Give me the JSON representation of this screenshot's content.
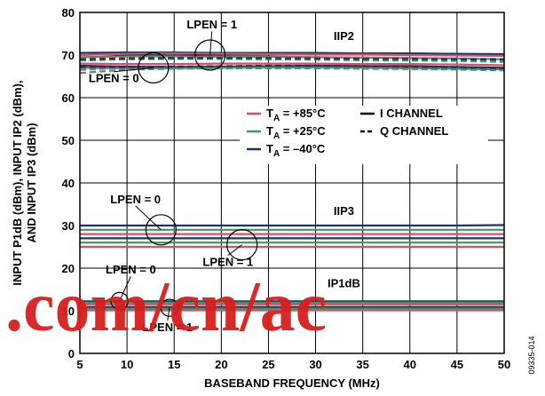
{
  "figure_code": "09335-014",
  "watermark": ".com/cn/ac",
  "colors": {
    "t85": "#d2526a",
    "t25": "#3a9a5a",
    "tm40": "#17356b",
    "watermark": "#d81e1e"
  },
  "chart_data": {
    "type": "line",
    "title": "",
    "xlabel": "BASEBAND FREQUENCY (MHz)",
    "ylabel": [
      "INPUT P1dB (dBm), INPUT IP2 (dBm),",
      "AND INPUT IP3 (dBm)"
    ],
    "xlim": [
      5,
      50
    ],
    "ylim": [
      0,
      80
    ],
    "xticks": [
      5,
      10,
      15,
      20,
      25,
      30,
      35,
      40,
      45,
      50
    ],
    "yticks": [
      0,
      10,
      20,
      30,
      40,
      50,
      60,
      70,
      80
    ],
    "grid": true,
    "legend": {
      "placement": "center-right",
      "temperatures": [
        {
          "key": "t85",
          "label": "T",
          "sub": "A",
          "value": " = +85°C"
        },
        {
          "key": "t25",
          "label": "T",
          "sub": "A",
          "value": " = +25°C"
        },
        {
          "key": "tm40",
          "label": "T",
          "sub": "A",
          "value": " = –40°C"
        }
      ],
      "channels": [
        {
          "style": "solid",
          "label": "I CHANNEL"
        },
        {
          "style": "dashed",
          "label": "Q CHANNEL"
        }
      ]
    },
    "group_labels": [
      {
        "id": "iip2",
        "text": "IIP2",
        "x": 33,
        "y": 73.5
      },
      {
        "id": "iip3",
        "text": "IIP3",
        "x": 33,
        "y": 32.5
      },
      {
        "id": "ip1db",
        "text": "IP1dB",
        "x": 33,
        "y": 15.5
      }
    ],
    "annotations": [
      {
        "id": "iip2-lpen1",
        "text": "LPEN = 1",
        "x": 19,
        "y": 76.2,
        "circle_x": 18.8,
        "circle_y": 70,
        "circle_r": 1.6
      },
      {
        "id": "iip2-lpen0",
        "text": "LPEN = 0",
        "x": 8.6,
        "y": 63.6,
        "circle_x": 12.8,
        "circle_y": 67,
        "circle_r": 1.6
      },
      {
        "id": "iip3-lpen0",
        "text": "LPEN = 0",
        "x": 10.9,
        "y": 35.2,
        "circle_x": 13.6,
        "circle_y": 29,
        "circle_r": 1.6
      },
      {
        "id": "iip3-lpen1",
        "text": "LPEN = 1",
        "x": 20.7,
        "y": 20.5,
        "circle_x": 22.2,
        "circle_y": 25.5,
        "circle_r": 1.6
      },
      {
        "id": "p1db-lpen0",
        "text": "LPEN = 0",
        "x": 10.4,
        "y": 18.7,
        "circle_x": 9.2,
        "circle_y": 12.3,
        "circle_r": 0.9
      },
      {
        "id": "p1db-lpen1",
        "text": "LPEN = 1",
        "x": 14.3,
        "y": 5.2,
        "circle_x": 14.5,
        "circle_y": 10.7,
        "circle_r": 0.9
      }
    ],
    "x": [
      5,
      10,
      15,
      20,
      25,
      30,
      35,
      40,
      45,
      50
    ],
    "series": [
      {
        "name": "IIP2 LPEN=1 TA=-40°C I",
        "temp": "tm40",
        "style": "solid",
        "values": [
          70.5,
          70.6,
          70.6,
          70.5,
          70.5,
          70.5,
          70.4,
          70.4,
          70.3,
          70.2
        ]
      },
      {
        "name": "IIP2 LPEN=1 TA=+85°C I",
        "temp": "t85",
        "style": "solid",
        "values": [
          70.0,
          70.3,
          70.4,
          70.3,
          70.2,
          70.1,
          70.1,
          70.0,
          69.9,
          69.8
        ]
      },
      {
        "name": "IIP2 LPEN=1 TA=+25°C I",
        "temp": "t25",
        "style": "solid",
        "values": [
          69.5,
          69.7,
          69.7,
          69.6,
          69.6,
          69.5,
          69.4,
          69.3,
          69.2,
          69.0
        ]
      },
      {
        "name": "IIP2 LPEN=1 TA=+85°C Q",
        "temp": "t85",
        "style": "dashed",
        "values": [
          69.2,
          69.5,
          69.6,
          69.6,
          69.5,
          69.5,
          69.4,
          69.3,
          69.2,
          69.1
        ]
      },
      {
        "name": "IIP2 LPEN=1 TA=+25°C Q",
        "temp": "t25",
        "style": "dashed",
        "values": [
          68.7,
          69.0,
          69.1,
          69.1,
          69.0,
          68.9,
          68.8,
          68.7,
          68.6,
          68.4
        ]
      },
      {
        "name": "IIP2 LPEN=1 TA=-40°C Q",
        "temp": "tm40",
        "style": "dashed",
        "values": [
          69.0,
          69.2,
          69.3,
          69.3,
          69.3,
          69.2,
          69.1,
          69.1,
          69.0,
          68.9
        ]
      },
      {
        "name": "IIP2 LPEN=0 TA=+85°C I",
        "temp": "t85",
        "style": "solid",
        "values": [
          68.0,
          67.9,
          67.9,
          68.0,
          68.0,
          68.0,
          67.9,
          67.9,
          67.8,
          67.6
        ]
      },
      {
        "name": "IIP2 LPEN=0 TA=-40°C I",
        "temp": "tm40",
        "style": "solid",
        "values": [
          67.5,
          67.3,
          67.2,
          67.3,
          67.4,
          67.5,
          67.4,
          67.4,
          67.2,
          67.0
        ]
      },
      {
        "name": "IIP2 LPEN=0 TA=+25°C I",
        "temp": "t25",
        "style": "solid",
        "values": [
          67.0,
          66.9,
          66.9,
          67.0,
          67.1,
          67.1,
          67.0,
          66.9,
          66.8,
          66.6
        ]
      },
      {
        "name": "IIP2 LPEN=0 TA=+85°C Q",
        "temp": "t85",
        "style": "dashed",
        "values": [
          66.5,
          67.1,
          67.2,
          67.2,
          67.2,
          67.2,
          67.1,
          67.0,
          66.9,
          66.7
        ]
      },
      {
        "name": "IIP2 LPEN=0 TA=+25°C Q",
        "temp": "t25",
        "style": "dashed",
        "values": [
          65.8,
          66.6,
          66.8,
          66.9,
          66.9,
          66.9,
          66.8,
          66.7,
          66.6,
          66.4
        ]
      },
      {
        "name": "IIP2 LPEN=0 TA=-40°C Q",
        "temp": "tm40",
        "style": "dashed",
        "values": [
          67.2,
          67.2,
          67.3,
          67.4,
          67.5,
          67.5,
          67.4,
          67.3,
          67.1,
          66.9
        ]
      },
      {
        "name": "IIP3 LPEN=0 TA=-40°C",
        "temp": "tm40",
        "style": "solid",
        "values": [
          30.0,
          30.0,
          30.0,
          30.0,
          30.0,
          30.0,
          30.0,
          30.0,
          30.0,
          30.1
        ]
      },
      {
        "name": "IIP3 LPEN=0 TA=+25°C",
        "temp": "t25",
        "style": "solid",
        "values": [
          29.0,
          29.0,
          29.0,
          29.0,
          29.0,
          29.0,
          29.0,
          29.0,
          29.0,
          29.0
        ]
      },
      {
        "name": "IIP3 LPEN=0 TA=+85°C",
        "temp": "t85",
        "style": "solid",
        "values": [
          28.0,
          28.0,
          28.0,
          28.0,
          28.0,
          28.0,
          28.0,
          28.0,
          28.0,
          28.0
        ]
      },
      {
        "name": "IIP3 LPEN=1 TA=-40°C",
        "temp": "tm40",
        "style": "solid",
        "values": [
          27.0,
          27.0,
          27.0,
          27.0,
          27.0,
          27.0,
          27.0,
          27.0,
          27.0,
          27.0
        ]
      },
      {
        "name": "IIP3 LPEN=1 TA=+25°C",
        "temp": "t25",
        "style": "solid",
        "values": [
          26.0,
          26.0,
          26.0,
          26.0,
          26.0,
          26.0,
          26.0,
          26.0,
          26.0,
          26.0
        ]
      },
      {
        "name": "IIP3 LPEN=1 TA=+85°C",
        "temp": "t85",
        "style": "solid",
        "values": [
          25.0,
          25.0,
          25.0,
          25.0,
          25.0,
          25.0,
          25.0,
          25.0,
          25.0,
          25.0
        ]
      },
      {
        "name": "IP1dB LPEN=0 TA=-40°C",
        "temp": "tm40",
        "style": "solid",
        "values": [
          12.2,
          12.2,
          12.2,
          12.2,
          12.2,
          12.2,
          12.2,
          12.2,
          12.2,
          12.2
        ]
      },
      {
        "name": "IP1dB LPEN=0 TA=+25°C",
        "temp": "t25",
        "style": "solid",
        "values": [
          11.9,
          11.9,
          11.9,
          11.9,
          11.9,
          11.9,
          11.9,
          11.9,
          11.9,
          11.9
        ]
      },
      {
        "name": "IP1dB LPEN=0 TA=+85°C",
        "temp": "t85",
        "style": "solid",
        "values": [
          11.5,
          11.5,
          11.5,
          11.5,
          11.5,
          11.5,
          11.5,
          11.5,
          11.5,
          11.5
        ]
      },
      {
        "name": "IP1dB LPEN=1 TA=-40°C",
        "temp": "tm40",
        "style": "solid",
        "values": [
          10.9,
          10.9,
          10.9,
          10.9,
          10.9,
          10.9,
          10.9,
          10.9,
          10.9,
          10.9
        ]
      },
      {
        "name": "IP1dB LPEN=1 TA=+25°C",
        "temp": "t25",
        "style": "solid",
        "values": [
          10.5,
          10.5,
          10.5,
          10.5,
          10.5,
          10.5,
          10.5,
          10.5,
          10.5,
          10.5
        ]
      },
      {
        "name": "IP1dB LPEN=1 TA=+85°C",
        "temp": "t85",
        "style": "solid",
        "values": [
          10.1,
          10.1,
          10.1,
          10.1,
          10.1,
          10.1,
          10.1,
          10.1,
          10.1,
          10.1
        ]
      }
    ]
  }
}
